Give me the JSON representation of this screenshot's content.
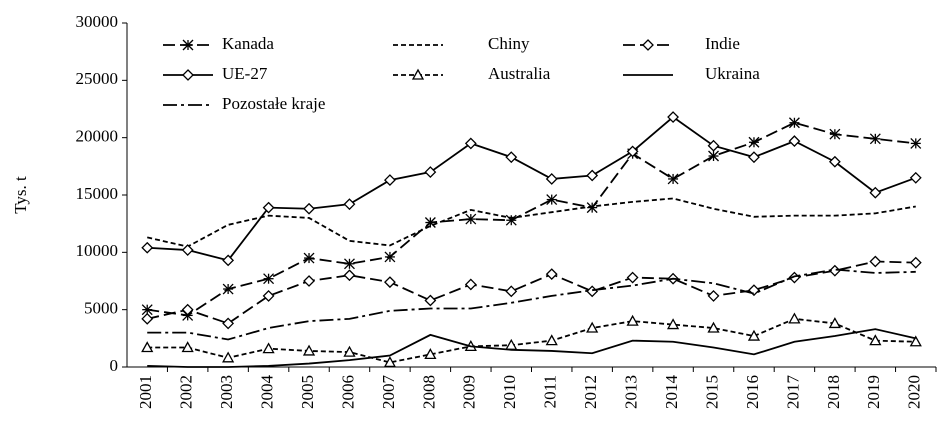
{
  "chart_data": {
    "type": "line",
    "y_label": "Tys. t",
    "categories": [
      "2001",
      "2002",
      "2003",
      "2004",
      "2005",
      "2006",
      "2007",
      "2008",
      "2009",
      "2010",
      "2011",
      "2012",
      "2013",
      "2014",
      "2015",
      "2016",
      "2017",
      "2018",
      "2019",
      "2020"
    ],
    "ylim": [
      0,
      30000
    ],
    "yticks": [
      0,
      5000,
      10000,
      15000,
      20000,
      25000,
      30000
    ],
    "legend": "top-left",
    "series": [
      {
        "name": "Kanada",
        "color": "#000000",
        "dash": "12,5",
        "marker": "asterisk",
        "values": [
          5000,
          4500,
          6800,
          7700,
          9500,
          9000,
          9600,
          12600,
          12900,
          12800,
          14600,
          13900,
          18600,
          16400,
          18400,
          19600,
          21300,
          20300,
          19900,
          19500
        ]
      },
      {
        "name": "Chiny",
        "color": "#000000",
        "dash": "5,3",
        "marker": null,
        "values": [
          11300,
          10500,
          12400,
          13200,
          13000,
          11000,
          10600,
          12300,
          13700,
          13000,
          13500,
          14000,
          14400,
          14700,
          13800,
          13100,
          13200,
          13200,
          13400,
          14000
        ]
      },
      {
        "name": "Indie",
        "color": "#000000",
        "dash": "12,5",
        "marker": "diamond",
        "values": [
          4200,
          5000,
          3800,
          6200,
          7500,
          8000,
          7400,
          5800,
          7200,
          6600,
          8100,
          6600,
          7800,
          7700,
          6200,
          6700,
          7800,
          8400,
          9200,
          9100
        ]
      },
      {
        "name": "UE-27",
        "color": "#000000",
        "dash": null,
        "marker": "diamond",
        "values": [
          10400,
          10200,
          9300,
          13900,
          13800,
          14200,
          16300,
          17000,
          19500,
          18300,
          16400,
          16700,
          18800,
          21800,
          19300,
          18300,
          19700,
          17900,
          15200,
          16500
        ]
      },
      {
        "name": "Australia",
        "color": "#000000",
        "dash": "5,3",
        "marker": "triangle",
        "values": [
          1700,
          1700,
          800,
          1600,
          1400,
          1300,
          400,
          1100,
          1800,
          1900,
          2300,
          3400,
          4000,
          3700,
          3400,
          2700,
          4200,
          3800,
          2300,
          2200
        ]
      },
      {
        "name": "Ukraina",
        "color": "#000000",
        "dash": null,
        "marker": null,
        "values": [
          100,
          0,
          0,
          100,
          300,
          600,
          1000,
          2800,
          1800,
          1500,
          1400,
          1200,
          2300,
          2200,
          1700,
          1100,
          2200,
          2700,
          3300,
          2500
        ]
      },
      {
        "name": "Pozostałe kraje",
        "color": "#000000",
        "dash": "14,4,3,4",
        "marker": null,
        "values": [
          3000,
          3000,
          2400,
          3400,
          4000,
          4200,
          4900,
          5100,
          5100,
          5600,
          6200,
          6700,
          7100,
          7700,
          7300,
          6400,
          7900,
          8500,
          8200,
          8300
        ]
      }
    ]
  }
}
